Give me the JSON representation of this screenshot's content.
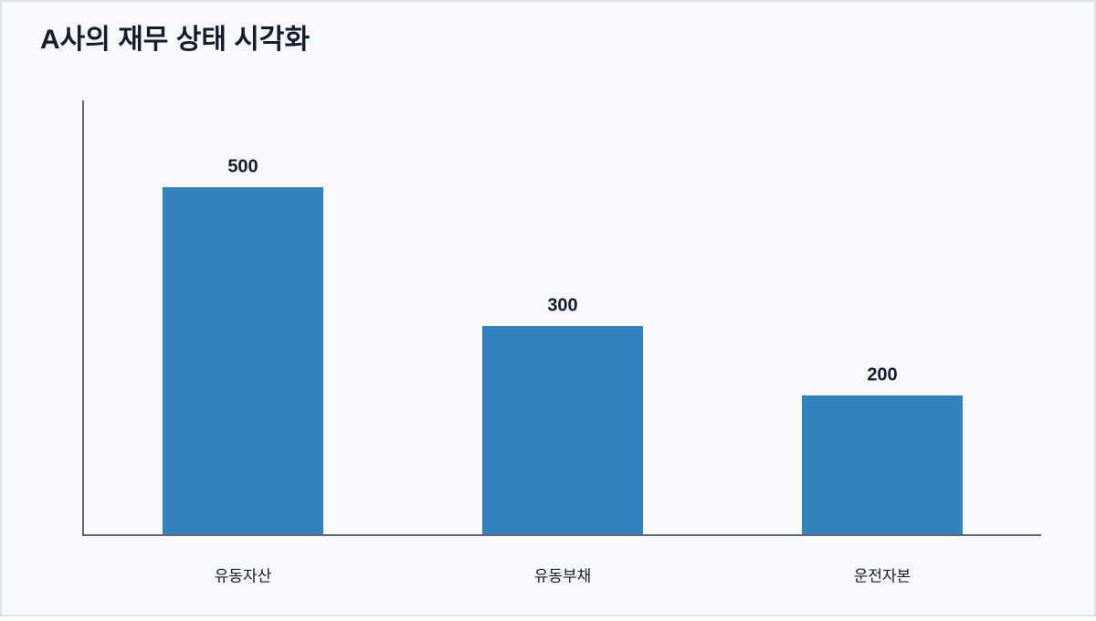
{
  "chart_data": {
    "type": "bar",
    "title": "A사의 재무 상태 시각화",
    "categories": [
      "유동자산",
      "유동부채",
      "운전자본"
    ],
    "values": [
      500,
      300,
      200
    ],
    "color": "#3182bd",
    "ylim": [
      0,
      625
    ]
  }
}
